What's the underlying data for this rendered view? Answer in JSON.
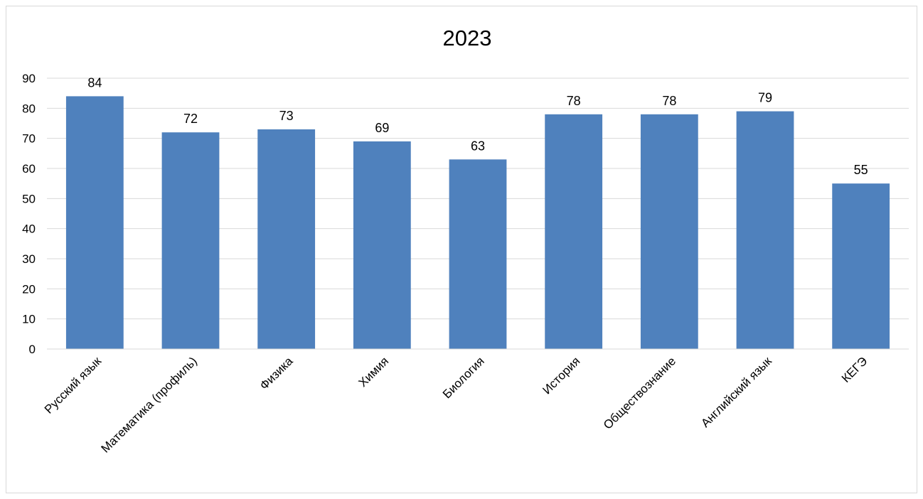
{
  "chart_data": {
    "type": "bar",
    "title": "2023",
    "xlabel": "",
    "ylabel": "",
    "categories": [
      "Русский язык",
      "Математика (профиль)",
      "Физика",
      "Химия",
      "Биология",
      "История",
      "Обществознание",
      "Английский язык",
      "КЕГЭ"
    ],
    "values": [
      84,
      72,
      73,
      69,
      63,
      78,
      78,
      79,
      55
    ],
    "ylim": [
      0,
      90
    ],
    "yticks": [
      "0",
      "10",
      "20",
      "30",
      "40",
      "50",
      "60",
      "70",
      "80",
      "90"
    ],
    "grid": true,
    "legend": "none",
    "bar_color": "#4f81bd",
    "grid_color": "#d9d9d9"
  }
}
